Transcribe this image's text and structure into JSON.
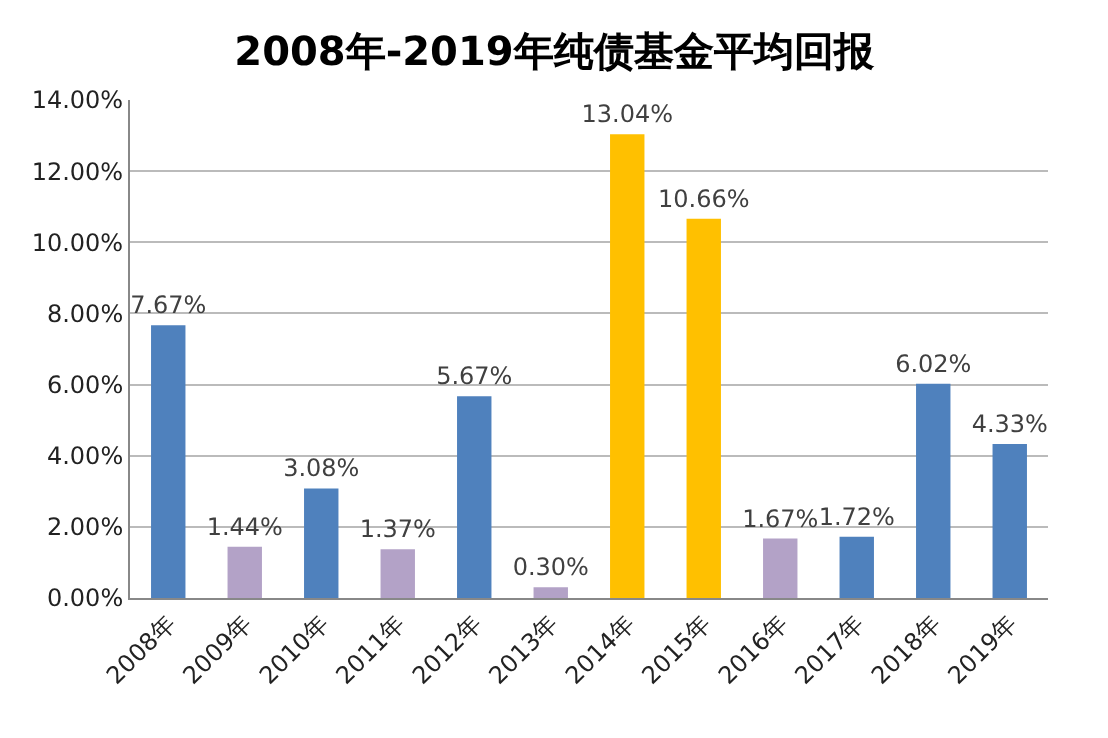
{
  "chart_data": {
    "type": "bar",
    "title": "2008年-2019年纯债基金平均回报",
    "categories": [
      "2008年",
      "2009年",
      "2010年",
      "2011年",
      "2012年",
      "2013年",
      "2014年",
      "2015年",
      "2016年",
      "2017年",
      "2018年",
      "2019年"
    ],
    "values": [
      7.67,
      1.44,
      3.08,
      1.37,
      5.67,
      0.3,
      13.04,
      10.66,
      1.67,
      1.72,
      6.02,
      4.33
    ],
    "value_labels": [
      "7.67%",
      "1.44%",
      "3.08%",
      "1.37%",
      "5.67%",
      "0.30%",
      "13.04%",
      "10.66%",
      "1.67%",
      "1.72%",
      "6.02%",
      "4.33%"
    ],
    "colors": [
      "#4f81bd",
      "#b3a2c7",
      "#4f81bd",
      "#b3a2c7",
      "#4f81bd",
      "#b3a2c7",
      "#ffc000",
      "#ffc000",
      "#b3a2c7",
      "#4f81bd",
      "#4f81bd",
      "#4f81bd"
    ],
    "ylim": [
      0,
      14
    ],
    "yticks": [
      {
        "value": 0,
        "label": "0.00%"
      },
      {
        "value": 2,
        "label": "2.00%"
      },
      {
        "value": 4,
        "label": "4.00%"
      },
      {
        "value": 6,
        "label": "6.00%"
      },
      {
        "value": 8,
        "label": "8.00%"
      },
      {
        "value": 10,
        "label": "10.00%"
      },
      {
        "value": 12,
        "label": "12.00%"
      },
      {
        "value": 14,
        "label": "14.00%"
      }
    ],
    "grid": "y"
  }
}
